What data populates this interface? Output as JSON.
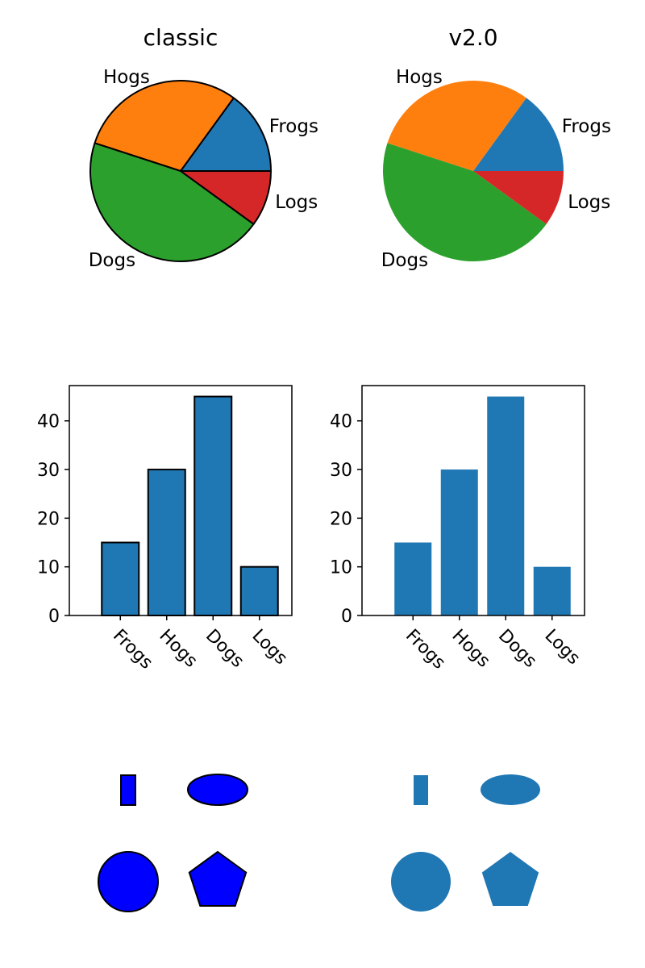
{
  "chart_data": [
    {
      "type": "pie",
      "title": "classic",
      "labels": [
        "Frogs",
        "Hogs",
        "Dogs",
        "Logs"
      ],
      "values": [
        15,
        30,
        45,
        10
      ],
      "colors": [
        "#1f77b4",
        "#ff7f0e",
        "#2ca02c",
        "#d62728"
      ],
      "edgecolor": "#000000"
    },
    {
      "type": "pie",
      "title": "v2.0",
      "labels": [
        "Frogs",
        "Hogs",
        "Dogs",
        "Logs"
      ],
      "values": [
        15,
        30,
        45,
        10
      ],
      "colors": [
        "#1f77b4",
        "#ff7f0e",
        "#2ca02c",
        "#d62728"
      ],
      "edgecolor": "none"
    },
    {
      "type": "bar",
      "categories": [
        "Frogs",
        "Hogs",
        "Dogs",
        "Logs"
      ],
      "values": [
        15,
        30,
        45,
        10
      ],
      "color": "#1f77b4",
      "edgecolor": "#000000",
      "yticks": [
        0,
        10,
        20,
        30,
        40
      ],
      "ylim": [
        0,
        47.25
      ],
      "xtick_rotation": -45
    },
    {
      "type": "bar",
      "categories": [
        "Frogs",
        "Hogs",
        "Dogs",
        "Logs"
      ],
      "values": [
        15,
        30,
        45,
        10
      ],
      "color": "#1f77b4",
      "edgecolor": "none",
      "yticks": [
        0,
        10,
        20,
        30,
        40
      ],
      "ylim": [
        0,
        47.25
      ],
      "xtick_rotation": -45
    }
  ],
  "patches": {
    "classic": {
      "fill": "#0000ff",
      "edge": "#000000",
      "shapes": [
        "rectangle",
        "ellipse",
        "circle",
        "pentagon"
      ]
    },
    "v2": {
      "fill": "#1f77b4",
      "edge": "none",
      "shapes": [
        "rectangle",
        "ellipse",
        "circle",
        "pentagon"
      ]
    }
  }
}
